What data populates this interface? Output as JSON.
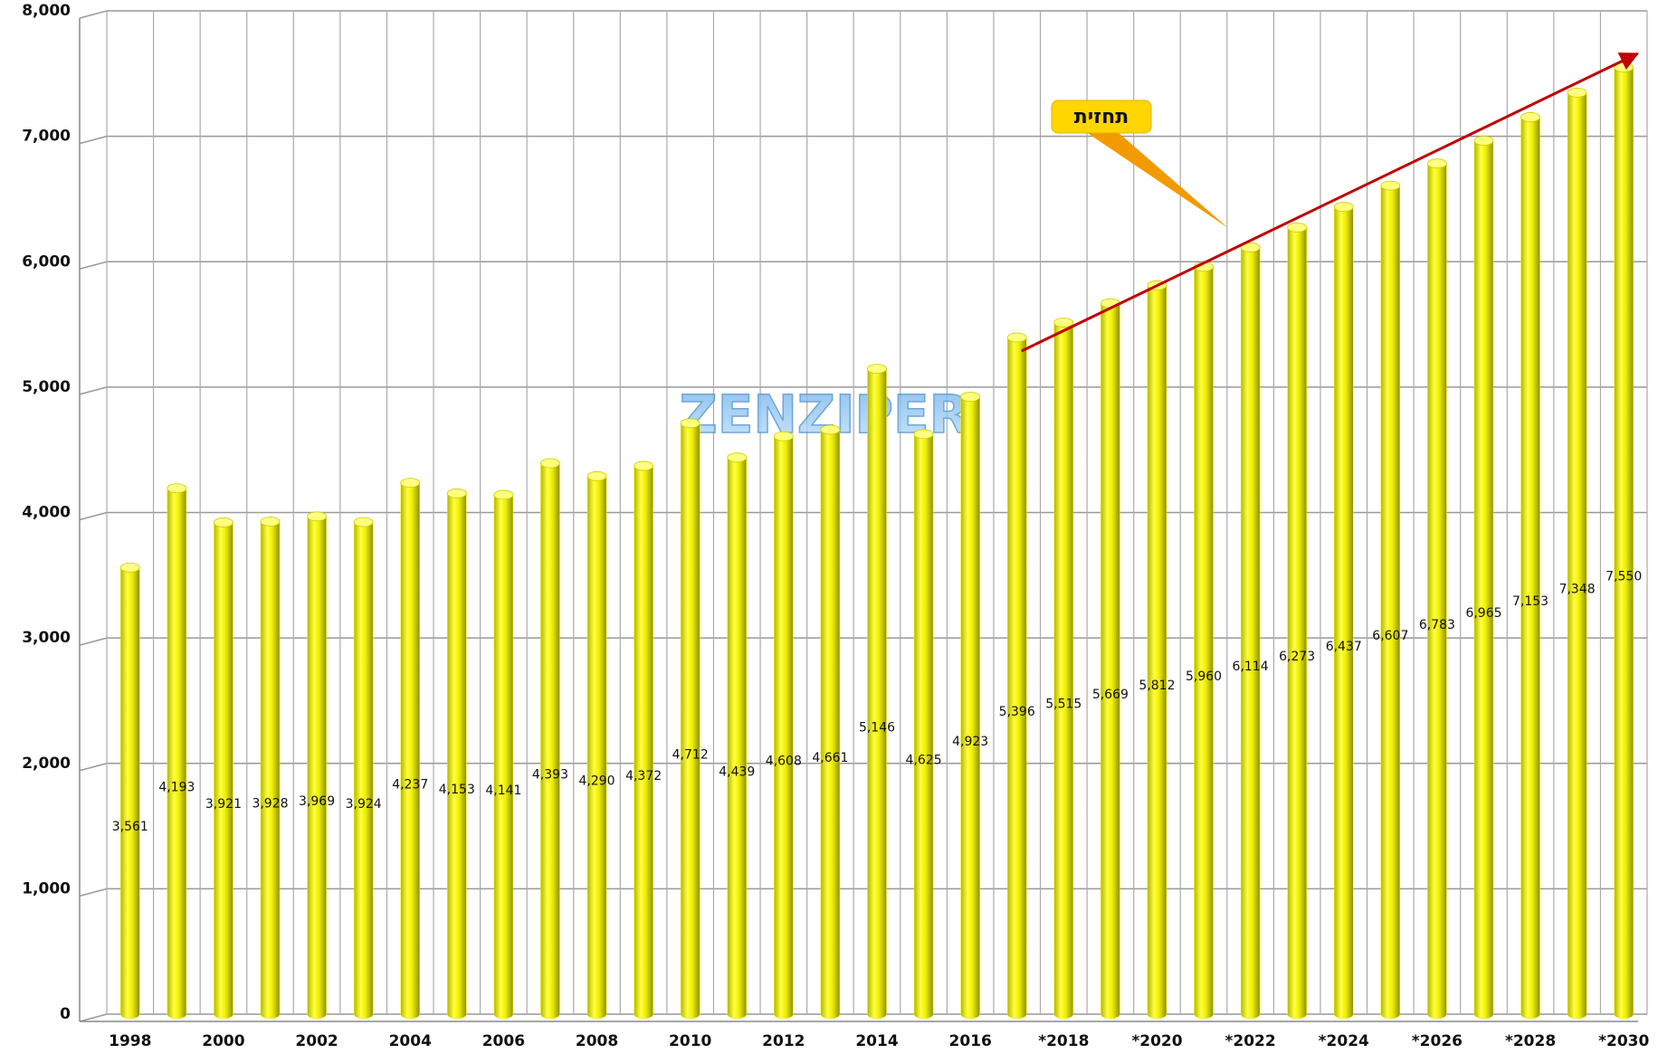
{
  "chart_data": {
    "type": "bar",
    "categories": [
      "1998",
      null,
      "2000",
      null,
      "2002",
      null,
      "2004",
      null,
      "2006",
      null,
      "2008",
      null,
      "2010",
      null,
      "2012",
      null,
      "2014",
      null,
      "2016",
      null,
      "*2018",
      null,
      "*2020",
      null,
      "*2022",
      null,
      "*2024",
      null,
      "*2026",
      null,
      "*2028",
      null,
      "*2030"
    ],
    "values": [
      3561,
      4193,
      3921,
      3928,
      3969,
      3924,
      4237,
      4153,
      4141,
      4393,
      4290,
      4372,
      4712,
      4439,
      4608,
      4661,
      5146,
      4625,
      4923,
      5396,
      5515,
      5669,
      5812,
      5960,
      6114,
      6273,
      6437,
      6607,
      6783,
      6965,
      7153,
      7348,
      7550
    ],
    "value_labels": [
      "3,561",
      "4,193",
      "3,921",
      "3,928",
      "3,969",
      "3,924",
      "4,237",
      "4,153",
      "4,141",
      "4,393",
      "4,290",
      "4,372",
      "4,712",
      "4,439",
      "4,608",
      "4,661",
      "5,146",
      "4,625",
      "4,923",
      "5,396",
      "5,515",
      "5,669",
      "5,812",
      "5,960",
      "6,114",
      "6,273",
      "6,437",
      "6,607",
      "6,783",
      "6,965",
      "7,153",
      "7,348",
      "7,550"
    ],
    "color": "#f4f400",
    "ylim": [
      0,
      8000
    ],
    "yticks": [
      0,
      {
        "value": 1000,
        "label": "1,000"
      },
      {
        "value": 2000,
        "label": "2,000"
      },
      {
        "value": 3000,
        "label": "3,000"
      },
      {
        "value": 4000,
        "label": "4,000"
      },
      {
        "value": 5000,
        "label": "5,000"
      },
      {
        "value": 6000,
        "label": "6,000"
      },
      {
        "value": 7000,
        "label": "7,000"
      },
      {
        "value": 8000,
        "label": "8,000"
      }
    ],
    "grid": true,
    "annotation": "תחזית",
    "watermark": "ZENZIPER"
  }
}
